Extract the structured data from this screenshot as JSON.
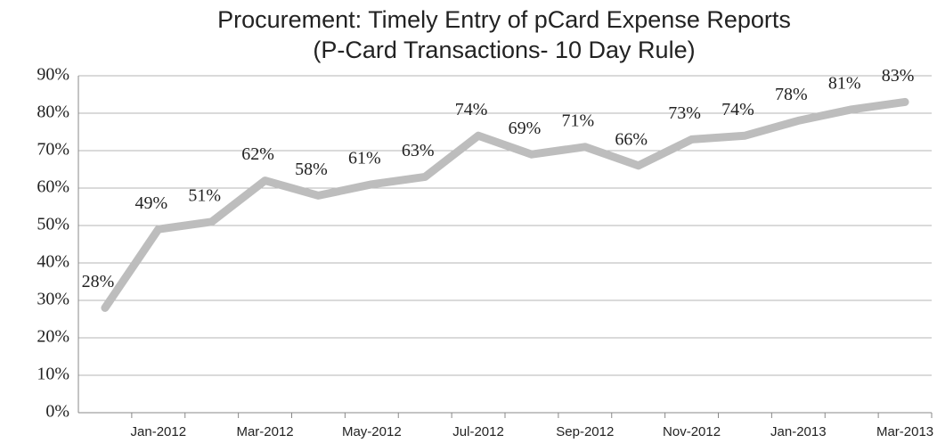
{
  "chart_data": {
    "type": "line",
    "title": "Procurement: Timely Entry of pCard Expense Reports",
    "subtitle": "(P-Card Transactions- 10 Day Rule)",
    "categories": [
      null,
      "Jan-2012",
      null,
      "Mar-2012",
      null,
      "May-2012",
      null,
      "Jul-2012",
      null,
      "Sep-2012",
      null,
      "Nov-2012",
      null,
      "Jan-2013",
      null,
      "Mar-2013"
    ],
    "series": [
      {
        "name": "pCard",
        "color": "#bdbdbd",
        "values": [
          28,
          49,
          51,
          62,
          58,
          61,
          63,
          74,
          69,
          71,
          66,
          73,
          74,
          78,
          81,
          83
        ],
        "value_labels": [
          "28%",
          "49%",
          "51%",
          "62%",
          "58%",
          "61%",
          "63%",
          "74%",
          "69%",
          "71%",
          "66%",
          "73%",
          "74%",
          "78%",
          "81%",
          "83%"
        ]
      }
    ],
    "ylim": [
      0,
      90
    ],
    "yticks": [
      {
        "value": 0,
        "label": "0%"
      },
      {
        "value": 10,
        "label": "10%"
      },
      {
        "value": 20,
        "label": "20%"
      },
      {
        "value": 30,
        "label": "30%"
      },
      {
        "value": 40,
        "label": "40%"
      },
      {
        "value": 50,
        "label": "50%"
      },
      {
        "value": 60,
        "label": "60%"
      },
      {
        "value": 70,
        "label": "70%"
      },
      {
        "value": 80,
        "label": "80%"
      },
      {
        "value": 90,
        "label": "90%"
      }
    ],
    "grid": true
  }
}
